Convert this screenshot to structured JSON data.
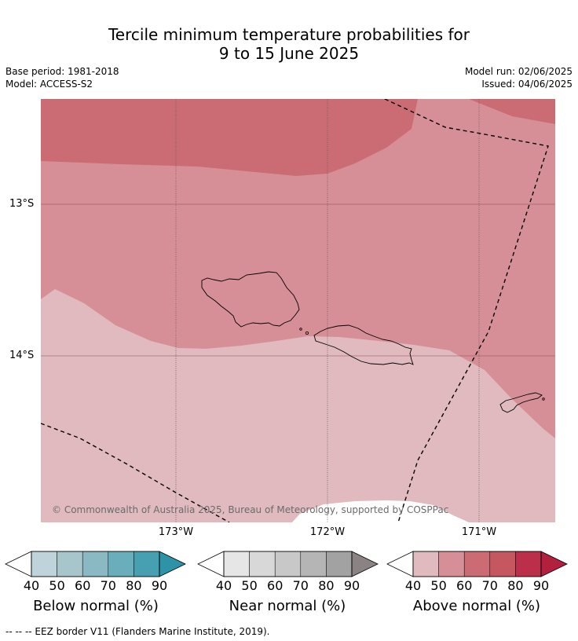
{
  "title": {
    "line1": "Tercile minimum temperature probabilities for",
    "line2": "9 to 15 June 2025"
  },
  "meta": {
    "base_period": "Base period: 1981-2018",
    "model": "Model: ACCESS-S2",
    "model_run": "Model run: 02/06/2025",
    "issued": "Issued: 04/06/2025"
  },
  "map": {
    "lat_labels": [
      "13°S",
      "14°S"
    ],
    "lon_labels": [
      "173°W",
      "172°W",
      "171°W"
    ],
    "copyright": "© Commonwealth of Australia 2025, Bureau of Meteorology, supported by COSPPac",
    "colors": {
      "above_40_50": "#e0babe",
      "above_50_60": "#d68f96",
      "above_60_70": "#cb6c75",
      "land_outline": "#000000",
      "eez_border": "#000000",
      "gridline": "#555555"
    }
  },
  "colorbars": [
    {
      "name": "Below normal (%)",
      "ticks": [
        "40",
        "50",
        "60",
        "70",
        "80",
        "90"
      ],
      "colors": [
        "#bfd3da",
        "#a6c6cb",
        "#8ab8c3",
        "#6aaebb",
        "#46a0b1",
        "#2e93a6"
      ]
    },
    {
      "name": "Near normal (%)",
      "ticks": [
        "40",
        "50",
        "60",
        "70",
        "80",
        "90"
      ],
      "colors": [
        "#e6e6e6",
        "#d8d8d8",
        "#c8c8c8",
        "#b5b5b5",
        "#a2a2a2",
        "#8a8283"
      ]
    },
    {
      "name": "Above normal (%)",
      "ticks": [
        "40",
        "50",
        "60",
        "70",
        "80",
        "90"
      ],
      "colors": [
        "#e0babe",
        "#d68f96",
        "#cb6c75",
        "#c4575f",
        "#bb2f4a",
        "#b2203d"
      ]
    }
  ],
  "footnote": "--  --  -- EEZ border V11 (Flanders Marine Institute, 2019)."
}
